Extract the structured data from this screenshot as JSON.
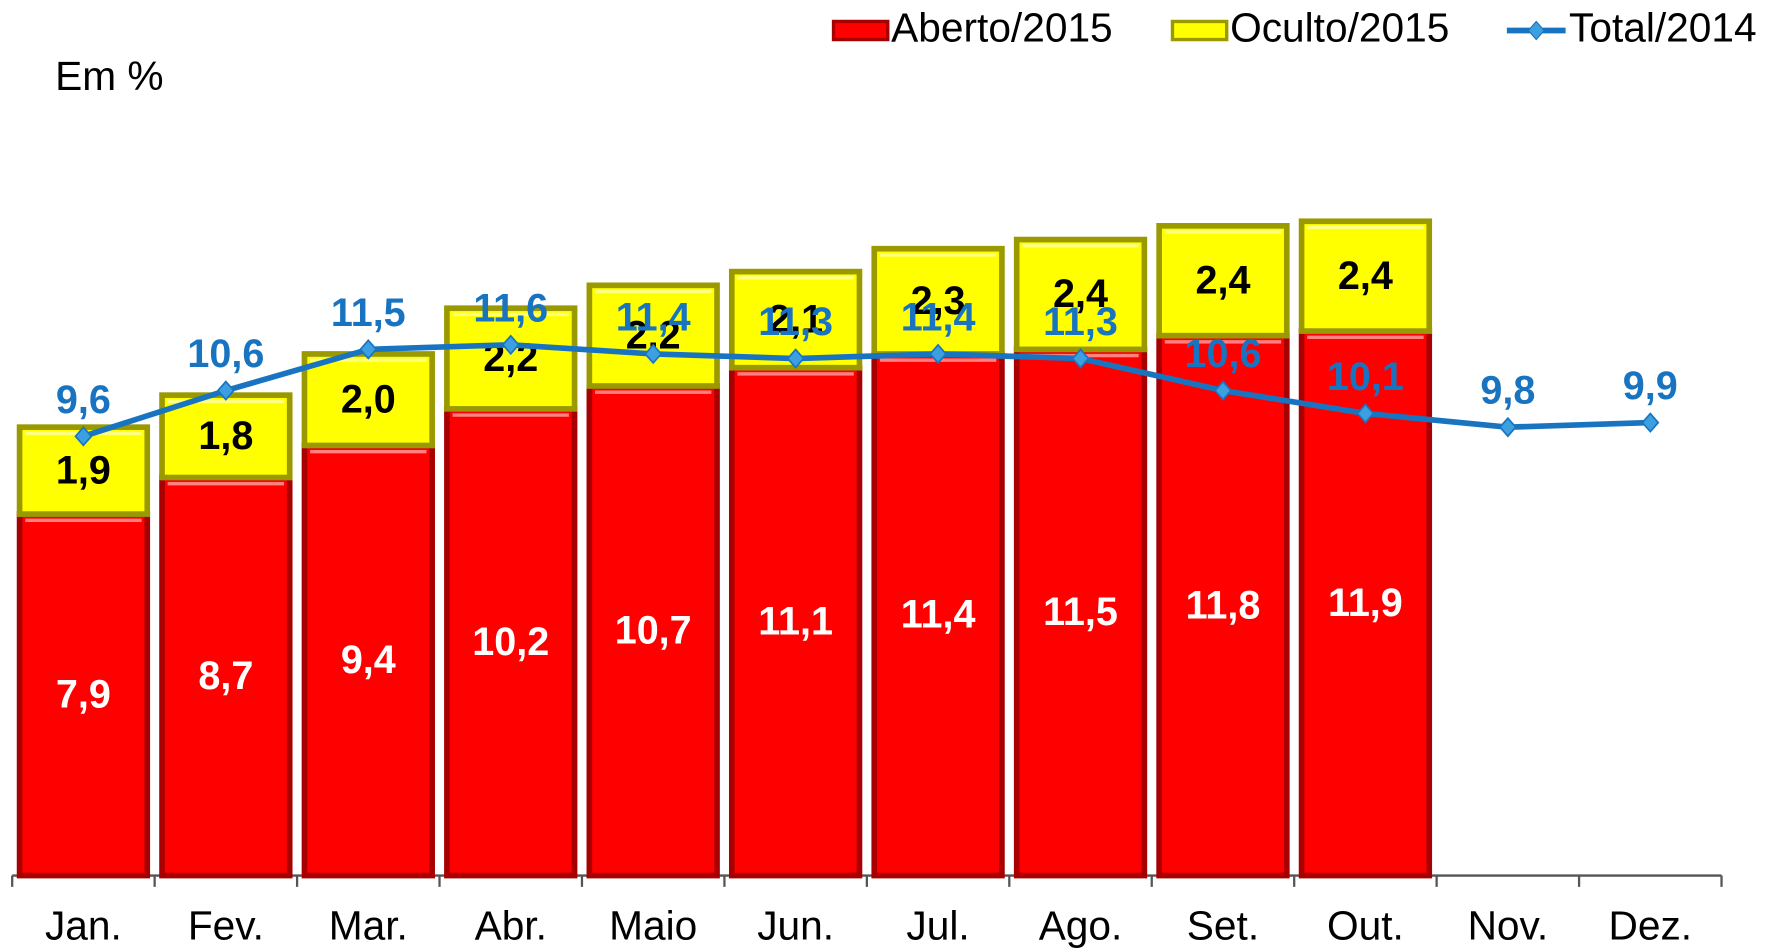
{
  "chart_data": {
    "type": "bar",
    "subtitle": "Em %",
    "categories": [
      "Jan.",
      "Fev.",
      "Mar.",
      "Abr.",
      "Maio",
      "Jun.",
      "Jul.",
      "Ago.",
      "Set.",
      "Out.",
      "Nov.",
      "Dez."
    ],
    "series": [
      {
        "name": "Aberto/2015",
        "type": "bar",
        "color": "#ff0000",
        "values": [
          7.9,
          8.7,
          9.4,
          10.2,
          10.7,
          11.1,
          11.4,
          11.5,
          11.8,
          11.9,
          null,
          null
        ],
        "value_labels": [
          "7,9",
          "8,7",
          "9,4",
          "10,2",
          "10,7",
          "11,1",
          "11,4",
          "11,5",
          "11,8",
          "11,9",
          null,
          null
        ]
      },
      {
        "name": "Oculto/2015",
        "type": "bar",
        "color": "#ffff00",
        "values": [
          1.9,
          1.8,
          2.0,
          2.2,
          2.2,
          2.1,
          2.3,
          2.4,
          2.4,
          2.4,
          null,
          null
        ],
        "value_labels": [
          "1,9",
          "1,8",
          "2,0",
          "2,2",
          "2,2",
          "2,1",
          "2,3",
          "2,4",
          "2,4",
          "2,4",
          null,
          null
        ]
      },
      {
        "name": "Total/2014",
        "type": "line",
        "color": "#1874c1",
        "values": [
          9.6,
          10.6,
          11.5,
          11.6,
          11.4,
          11.3,
          11.4,
          11.3,
          10.6,
          10.1,
          9.8,
          9.9
        ],
        "value_labels": [
          "9,6",
          "10,6",
          "11,5",
          "11,6",
          "11,4",
          "11,3",
          "11,4",
          "11,3",
          "10,6",
          "10,1",
          "9,8",
          "9,9"
        ]
      }
    ],
    "ylim": [
      0,
      16
    ],
    "legend": "top-right"
  }
}
